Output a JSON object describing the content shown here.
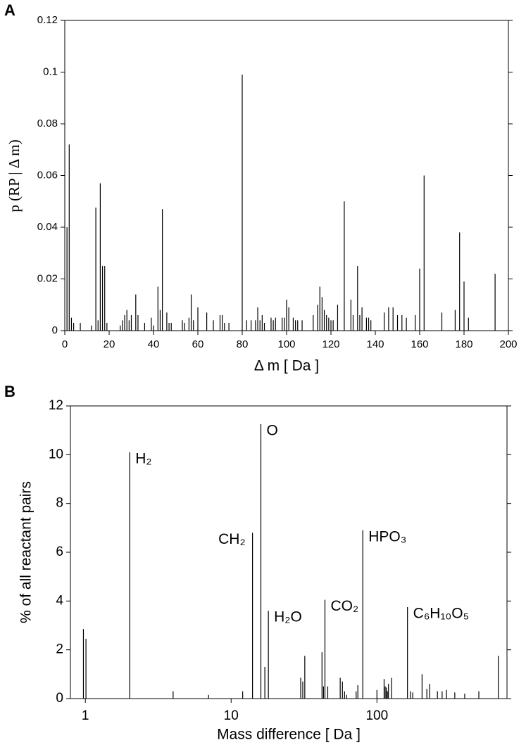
{
  "chart_data": [
    {
      "type": "stem",
      "panel": "A",
      "xlabel": "Δ m [ Da ]",
      "ylabel": "p (RP | Δ m)",
      "xscale": "linear",
      "color": "#000000",
      "xlim": [
        0,
        200
      ],
      "xticks": [
        0,
        20,
        40,
        60,
        80,
        100,
        120,
        140,
        160,
        180,
        200
      ],
      "ylim": [
        0,
        0.12
      ],
      "yticks": [
        0,
        0.02,
        0.04,
        0.06,
        0.08,
        0.1,
        0.12
      ],
      "x": [
        1,
        2,
        3,
        4,
        7,
        12,
        14,
        15,
        16,
        17,
        18,
        19,
        25,
        26,
        27,
        28,
        29,
        30,
        32,
        33,
        36,
        39,
        40,
        42,
        43,
        44,
        46,
        47,
        48,
        53,
        54,
        56,
        57,
        58,
        60,
        64,
        67,
        70,
        71,
        72,
        74,
        80,
        82,
        84,
        86,
        87,
        88,
        89,
        90,
        93,
        94,
        95,
        98,
        99,
        100,
        101,
        103,
        104,
        105,
        107,
        112,
        114,
        115,
        116,
        117,
        118,
        119,
        120,
        121,
        123,
        126,
        129,
        130,
        132,
        133,
        134,
        136,
        137,
        138,
        144,
        146,
        148,
        150,
        152,
        154,
        158,
        160,
        162,
        170,
        176,
        178,
        180,
        182,
        194
      ],
      "values": [
        0.04,
        0.072,
        0.005,
        0.003,
        0.003,
        0.002,
        0.0476,
        0.004,
        0.057,
        0.025,
        0.025,
        0.003,
        0.002,
        0.004,
        0.006,
        0.008,
        0.004,
        0.006,
        0.014,
        0.006,
        0.003,
        0.005,
        0.002,
        0.017,
        0.008,
        0.047,
        0.007,
        0.003,
        0.003,
        0.004,
        0.003,
        0.005,
        0.014,
        0.004,
        0.009,
        0.007,
        0.004,
        0.006,
        0.006,
        0.003,
        0.003,
        0.099,
        0.004,
        0.004,
        0.004,
        0.009,
        0.004,
        0.006,
        0.003,
        0.005,
        0.004,
        0.005,
        0.005,
        0.005,
        0.012,
        0.009,
        0.005,
        0.004,
        0.004,
        0.004,
        0.006,
        0.01,
        0.017,
        0.013,
        0.008,
        0.006,
        0.005,
        0.004,
        0.004,
        0.01,
        0.05,
        0.012,
        0.006,
        0.025,
        0.006,
        0.009,
        0.005,
        0.005,
        0.004,
        0.007,
        0.009,
        0.009,
        0.006,
        0.006,
        0.005,
        0.006,
        0.024,
        0.06,
        0.007,
        0.008,
        0.038,
        0.019,
        0.005,
        0.022
      ]
    },
    {
      "type": "stem",
      "panel": "B",
      "xlabel": "Mass difference [ Da ]",
      "ylabel": "% of all reactant pairs",
      "xscale": "log",
      "color": "#000000",
      "xlim": [
        0.79,
        780
      ],
      "xticks": [
        1,
        10,
        100
      ],
      "ylim": [
        0,
        12
      ],
      "yticks": [
        0,
        2,
        4,
        6,
        8,
        10,
        12
      ],
      "x": [
        0.97,
        1.01,
        2.016,
        4,
        7,
        12,
        14.016,
        15.995,
        17.03,
        18.01,
        30,
        31,
        32,
        42,
        43,
        44,
        46,
        56,
        58,
        60,
        62,
        72,
        74,
        80,
        100,
        112,
        114,
        116,
        118,
        120,
        126,
        162,
        170,
        176,
        204,
        220,
        230,
        260,
        280,
        300,
        342,
        400,
        500,
        680
      ],
      "values": [
        2.85,
        2.45,
        10.1,
        0.3,
        0.15,
        0.3,
        6.8,
        11.25,
        1.3,
        3.6,
        0.85,
        0.7,
        1.75,
        1.9,
        0.5,
        4.05,
        0.5,
        0.85,
        0.7,
        0.3,
        0.15,
        0.3,
        0.55,
        6.9,
        0.35,
        0.8,
        0.5,
        0.45,
        0.3,
        0.6,
        0.85,
        3.75,
        0.3,
        0.25,
        1.0,
        0.4,
        0.6,
        0.3,
        0.3,
        0.35,
        0.25,
        0.2,
        0.3,
        1.75
      ],
      "labels": [
        null,
        null,
        "H₂",
        null,
        null,
        null,
        "CH₂",
        "O",
        null,
        "H₂O",
        null,
        null,
        null,
        null,
        null,
        "CO₂",
        null,
        null,
        null,
        null,
        null,
        null,
        null,
        "HPO₃",
        null,
        null,
        null,
        null,
        null,
        null,
        null,
        "C₆H₁₀O₅",
        null,
        null,
        null,
        null,
        null,
        null,
        null,
        null,
        null,
        null,
        null,
        null
      ]
    }
  ]
}
